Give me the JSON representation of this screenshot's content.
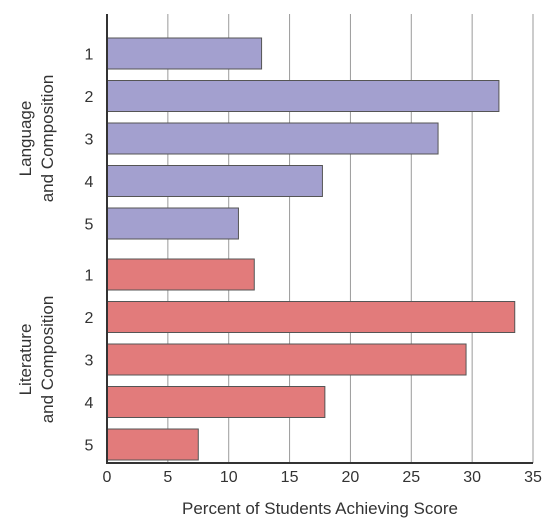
{
  "chart_data": {
    "type": "bar",
    "orientation": "horizontal",
    "xlabel": "Percent of Students Achieving Score",
    "xlim": [
      0,
      35
    ],
    "xticks": [
      0,
      5,
      10,
      15,
      20,
      25,
      30,
      35
    ],
    "grid": "vertical",
    "groups": [
      {
        "label_lines": [
          "Language",
          "and Composition"
        ],
        "color": "#a3a0cf",
        "categories": [
          "1",
          "2",
          "3",
          "4",
          "5"
        ],
        "values": [
          12.7,
          32.2,
          27.2,
          17.7,
          10.8
        ]
      },
      {
        "label_lines": [
          "Literature",
          "and Composition"
        ],
        "color": "#e27b7b",
        "categories": [
          "1",
          "2",
          "3",
          "4",
          "5"
        ],
        "values": [
          12.1,
          33.5,
          29.5,
          17.9,
          7.5
        ]
      }
    ]
  }
}
